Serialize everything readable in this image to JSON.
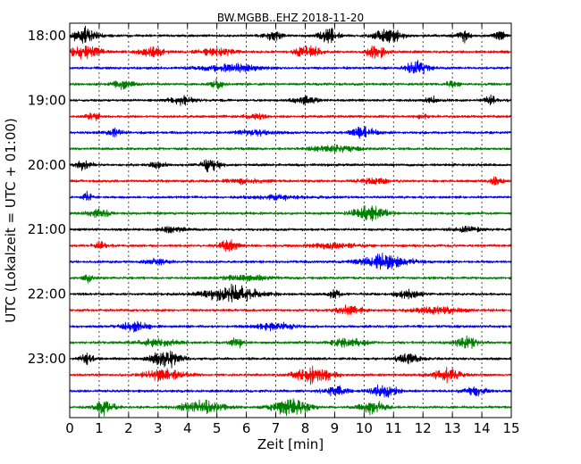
{
  "chart_data": {
    "type": "line",
    "title": "BW.MGBB..EHZ 2018-11-20",
    "xlabel": "Zeit  [min]",
    "ylabel": "UTC (Lokalzeit = UTC + 01:00)",
    "xlim": [
      0,
      15
    ],
    "x_ticks": [
      0,
      1,
      2,
      3,
      4,
      5,
      6,
      7,
      8,
      9,
      10,
      11,
      12,
      13,
      14,
      15
    ],
    "x_tick_labels": [
      "0",
      "1",
      "2",
      "3",
      "4",
      "5",
      "6",
      "7",
      "8",
      "9",
      "10",
      "11",
      "12",
      "13",
      "14",
      "15"
    ],
    "y_ticks": [
      {
        "label": "18:00",
        "row": 0
      },
      {
        "label": "19:00",
        "row": 4
      },
      {
        "label": "20:00",
        "row": 8
      },
      {
        "label": "21:00",
        "row": 12
      },
      {
        "label": "22:00",
        "row": 16
      },
      {
        "label": "23:00",
        "row": 20
      }
    ],
    "grid": {
      "vertical": true,
      "horizontal": false
    },
    "series": [
      {
        "start": "18:00",
        "color": "#000000",
        "bursts": [
          [
            0.5,
            1,
            1.0
          ],
          [
            6.9,
            0.7,
            0.6
          ],
          [
            8.8,
            0.8,
            0.9
          ],
          [
            10.8,
            1.1,
            1.0
          ],
          [
            13.4,
            0.5,
            0.8
          ],
          [
            14.6,
            0.4,
            0.7
          ]
        ]
      },
      {
        "start": "18:15",
        "color": "#ff0000",
        "bursts": [
          [
            0.5,
            1.2,
            0.9
          ],
          [
            2.8,
            1.0,
            0.7
          ],
          [
            5.0,
            1.5,
            0.5
          ],
          [
            8.1,
            1.0,
            0.8
          ],
          [
            10.4,
            0.8,
            0.9
          ]
        ]
      },
      {
        "start": "18:30",
        "color": "#0000ff",
        "bursts": [
          [
            5.5,
            2.5,
            0.45
          ],
          [
            11.8,
            0.9,
            0.9
          ]
        ]
      },
      {
        "start": "18:45",
        "color": "#008000",
        "bursts": [
          [
            1.8,
            0.8,
            0.6
          ],
          [
            5.0,
            0.5,
            0.5
          ],
          [
            13.0,
            0.6,
            0.4
          ]
        ]
      },
      {
        "start": "19:00",
        "color": "#000000",
        "bursts": [
          [
            3.8,
            1.0,
            0.5
          ],
          [
            8.0,
            1.0,
            0.45
          ],
          [
            12.3,
            0.5,
            0.5
          ],
          [
            14.3,
            0.5,
            0.5
          ]
        ]
      },
      {
        "start": "19:15",
        "color": "#ff0000",
        "bursts": [
          [
            0.8,
            0.5,
            0.5
          ],
          [
            6.3,
            0.8,
            0.35
          ],
          [
            12.0,
            0.5,
            0.35
          ]
        ]
      },
      {
        "start": "19:30",
        "color": "#0000ff",
        "bursts": [
          [
            1.5,
            0.7,
            0.4
          ],
          [
            6.3,
            1.5,
            0.35
          ],
          [
            10.0,
            1.0,
            0.8
          ]
        ]
      },
      {
        "start": "19:45",
        "color": "#008000",
        "bursts": [
          [
            9.0,
            2.0,
            0.35
          ]
        ]
      },
      {
        "start": "20:00",
        "color": "#000000",
        "bursts": [
          [
            0.5,
            0.6,
            0.7
          ],
          [
            3.0,
            0.6,
            0.5
          ],
          [
            4.8,
            0.8,
            0.75
          ]
        ]
      },
      {
        "start": "20:15",
        "color": "#ff0000",
        "bursts": [
          [
            6.0,
            1.5,
            0.35
          ],
          [
            10.3,
            1.0,
            0.5
          ],
          [
            14.5,
            0.5,
            0.5
          ]
        ]
      },
      {
        "start": "20:30",
        "color": "#0000ff",
        "bursts": [
          [
            0.6,
            0.4,
            0.55
          ],
          [
            7.0,
            2.0,
            0.3
          ]
        ]
      },
      {
        "start": "20:45",
        "color": "#008000",
        "bursts": [
          [
            1.0,
            1.0,
            0.45
          ],
          [
            10.2,
            1.3,
            1.0
          ]
        ]
      },
      {
        "start": "21:00",
        "color": "#000000",
        "bursts": [
          [
            3.5,
            1.0,
            0.35
          ],
          [
            13.5,
            1.0,
            0.35
          ]
        ]
      },
      {
        "start": "21:15",
        "color": "#ff0000",
        "bursts": [
          [
            1.0,
            0.6,
            0.45
          ],
          [
            5.4,
            0.8,
            0.6
          ],
          [
            9.0,
            2.0,
            0.3
          ]
        ]
      },
      {
        "start": "21:30",
        "color": "#0000ff",
        "bursts": [
          [
            3.0,
            1.0,
            0.35
          ],
          [
            10.7,
            2.0,
            0.9
          ]
        ]
      },
      {
        "start": "21:45",
        "color": "#008000",
        "bursts": [
          [
            0.6,
            0.4,
            0.5
          ],
          [
            6.0,
            2.0,
            0.3
          ]
        ]
      },
      {
        "start": "22:00",
        "color": "#000000",
        "bursts": [
          [
            5.5,
            2.2,
            1.0
          ],
          [
            9.0,
            0.5,
            0.6
          ],
          [
            11.5,
            1.0,
            0.5
          ]
        ]
      },
      {
        "start": "22:15",
        "color": "#ff0000",
        "bursts": [
          [
            9.5,
            1.2,
            0.55
          ],
          [
            12.5,
            2.0,
            0.4
          ]
        ]
      },
      {
        "start": "22:30",
        "color": "#0000ff",
        "bursts": [
          [
            2.2,
            1.2,
            0.55
          ],
          [
            7.0,
            1.5,
            0.5
          ]
        ]
      },
      {
        "start": "22:45",
        "color": "#008000",
        "bursts": [
          [
            3.0,
            1.5,
            0.5
          ],
          [
            5.7,
            0.6,
            0.6
          ],
          [
            9.5,
            1.5,
            0.5
          ],
          [
            13.5,
            1.0,
            0.65
          ]
        ]
      },
      {
        "start": "23:00",
        "color": "#000000",
        "bursts": [
          [
            0.6,
            0.5,
            0.8
          ],
          [
            3.3,
            1.2,
            1.1
          ],
          [
            11.5,
            1.0,
            0.7
          ]
        ]
      },
      {
        "start": "23:15",
        "color": "#ff0000",
        "bursts": [
          [
            3.2,
            1.5,
            0.8
          ],
          [
            8.3,
            1.5,
            1.0
          ],
          [
            12.8,
            1.2,
            0.8
          ]
        ]
      },
      {
        "start": "23:30",
        "color": "#0000ff",
        "bursts": [
          [
            9.0,
            1.0,
            0.6
          ],
          [
            10.7,
            1.0,
            0.9
          ],
          [
            13.8,
            1.0,
            0.5
          ]
        ]
      },
      {
        "start": "23:45",
        "color": "#008000",
        "bursts": [
          [
            1.2,
            0.8,
            0.9
          ],
          [
            4.5,
            1.8,
            0.8
          ],
          [
            7.5,
            1.5,
            1.0
          ],
          [
            10.3,
            1.0,
            0.8
          ]
        ]
      }
    ]
  }
}
